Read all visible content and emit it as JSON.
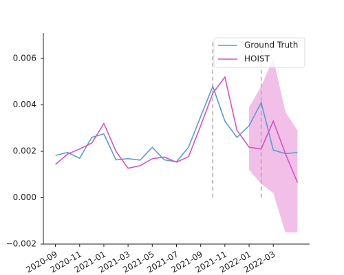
{
  "chart_data": {
    "type": "line",
    "x": [
      "2020-09",
      "2020-10",
      "2020-11",
      "2020-12",
      "2021-01",
      "2021-02",
      "2021-03",
      "2021-04",
      "2021-05",
      "2021-06",
      "2021-07",
      "2021-08",
      "2021-09",
      "2021-10",
      "2021-11",
      "2021-12",
      "2022-01",
      "2022-02",
      "2022-03",
      "2022-04",
      "2022-05"
    ],
    "series": [
      {
        "name": "Ground Truth",
        "color": "#5b9bd5",
        "values": [
          0.00182,
          0.00195,
          0.0017,
          0.0026,
          0.00275,
          0.00163,
          0.00168,
          0.00162,
          0.00217,
          0.00163,
          0.00155,
          0.00218,
          0.0035,
          0.0048,
          0.0033,
          0.0026,
          0.0031,
          0.0041,
          0.00205,
          0.0019,
          0.00195
        ]
      },
      {
        "name": "HOIST",
        "color": "#d453c4",
        "values": [
          0.00143,
          0.00188,
          0.0021,
          0.00235,
          0.0032,
          0.002,
          0.00127,
          0.00138,
          0.00168,
          0.00175,
          0.00153,
          0.00177,
          0.0031,
          0.0045,
          0.0052,
          0.0029,
          0.00218,
          0.0021,
          0.0033,
          0.0019,
          0.00065
        ]
      }
    ],
    "band": {
      "color": "#f0b8e6",
      "x": [
        "2022-01",
        "2022-02",
        "2022-03",
        "2022-04",
        "2022-05"
      ],
      "lower": [
        0.0012,
        0.0006,
        0.0002,
        -0.0015,
        -0.0015
      ],
      "upper": [
        0.0039,
        0.0048,
        0.006,
        0.0037,
        0.0029
      ]
    },
    "vlines": {
      "x": [
        "2021-10",
        "2022-02"
      ],
      "range": [
        0,
        0.0067
      ]
    },
    "xlim": [
      "2020-08",
      "2022-06"
    ],
    "xticks": [
      "2020-09",
      "2020-11",
      "2021-01",
      "2021-03",
      "2021-05",
      "2021-07",
      "2021-09",
      "2021-11",
      "2022-01",
      "2022-03"
    ],
    "ylim": [
      -0.002,
      0.0071
    ],
    "yticks": [
      {
        "value": -0.002,
        "label": "−0.002"
      },
      {
        "value": 0,
        "label": "0.000"
      },
      {
        "value": 0.002,
        "label": "0.002"
      },
      {
        "value": 0.004,
        "label": "0.004"
      },
      {
        "value": 0.006,
        "label": "0.006"
      }
    ],
    "legend": "upper right"
  }
}
